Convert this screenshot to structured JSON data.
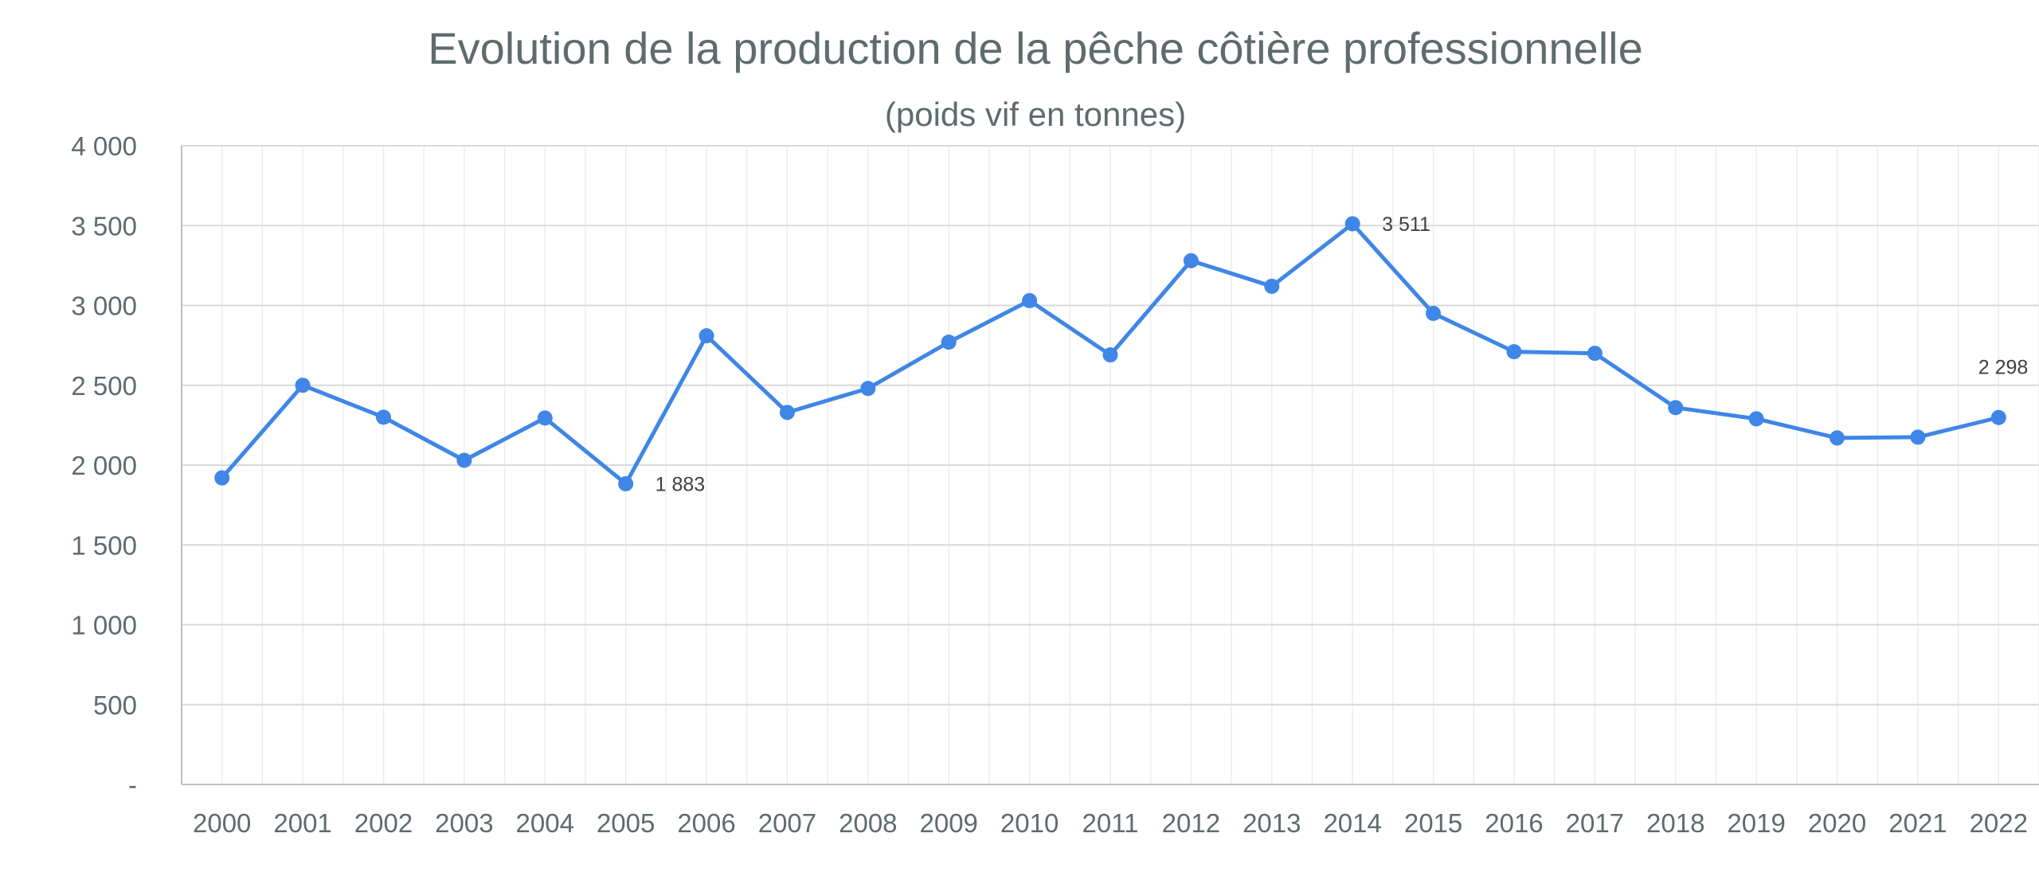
{
  "chart_data": {
    "type": "line",
    "title": "Evolution de la production de la pêche côtière professionnelle",
    "subtitle": "(poids vif en tonnes)",
    "xlabel": "",
    "ylabel": "",
    "ylim": [
      0,
      4000
    ],
    "y_ticks": [
      {
        "value": 0,
        "label": "-"
      },
      {
        "value": 500,
        "label": "500"
      },
      {
        "value": 1000,
        "label": "1 000"
      },
      {
        "value": 1500,
        "label": "1 500"
      },
      {
        "value": 2000,
        "label": "2 000"
      },
      {
        "value": 2500,
        "label": "2 500"
      },
      {
        "value": 3000,
        "label": "3 000"
      },
      {
        "value": 3500,
        "label": "3 500"
      },
      {
        "value": 4000,
        "label": "4 000"
      }
    ],
    "categories": [
      "2000",
      "2001",
      "2002",
      "2003",
      "2004",
      "2005",
      "2006",
      "2007",
      "2008",
      "2009",
      "2010",
      "2011",
      "2012",
      "2013",
      "2014",
      "2015",
      "2016",
      "2017",
      "2018",
      "2019",
      "2020",
      "2021",
      "2022"
    ],
    "series": [
      {
        "values": [
          1920,
          2500,
          2300,
          2030,
          2295,
          1883,
          2810,
          2330,
          2480,
          2770,
          3030,
          2690,
          3280,
          3120,
          3511,
          2950,
          2710,
          2700,
          2360,
          2290,
          2170,
          2175,
          2298
        ]
      }
    ],
    "data_labels": [
      {
        "category": "2005",
        "text": "1 883"
      },
      {
        "category": "2014",
        "text": "3 511"
      },
      {
        "category": "2022",
        "text": "2 298"
      }
    ],
    "grid": true,
    "legend": "none",
    "colors": {
      "line": "#3f86e6",
      "text": "#5f6b6d",
      "grid": "#d9d9d9"
    }
  }
}
